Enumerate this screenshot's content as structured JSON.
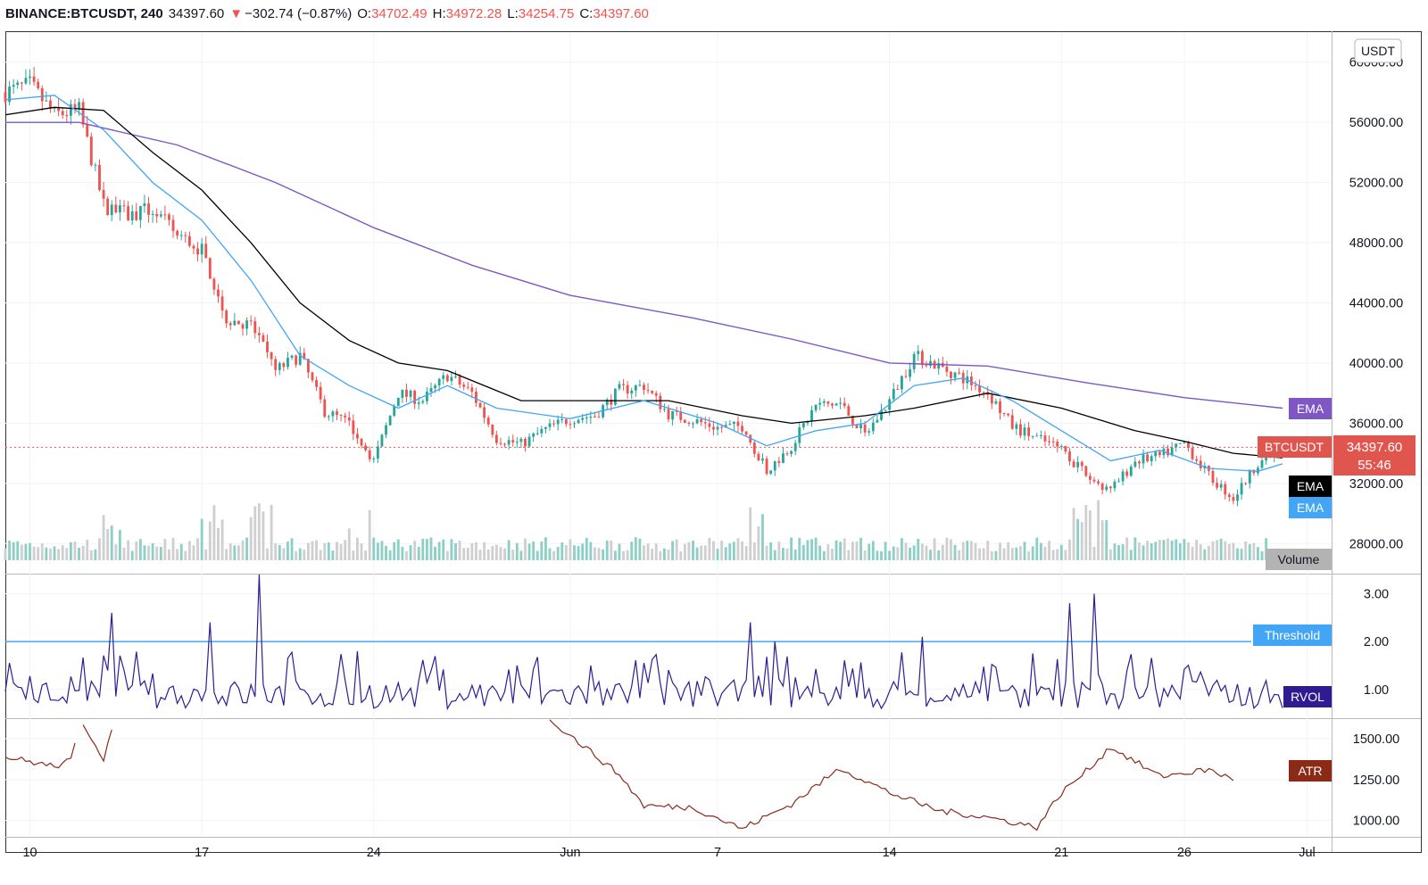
{
  "header": {
    "symbol": "BINANCE:BTCUSDT, 240",
    "price": "34397.60",
    "arrow": "▼",
    "change": "−302.74 (−0.87%)",
    "o_label": "O:",
    "o_value": "34702.49",
    "h_label": "H:",
    "h_value": "34972.28",
    "l_label": "L:",
    "l_value": "34254.75",
    "c_label": "C:",
    "c_value": "34397.60"
  },
  "currency_button": "USDT",
  "labels": {
    "ema_purple": "EMA",
    "ema_black": "EMA",
    "ema_blue": "EMA",
    "symbol_tag": "BTCUSDT",
    "price_tag": "34397.60",
    "countdown": "55:46",
    "volume": "Volume",
    "threshold": "Threshold",
    "rvol": "RVOL",
    "atr": "ATR"
  },
  "colors": {
    "up": "#26a69a",
    "down": "#ef5350",
    "ema_long": "#7e57c2",
    "ema_mid": "#000000",
    "ema_short": "#42a5f5",
    "rvol": "#311b92",
    "threshold": "#2196f3",
    "atr": "#8b2a17",
    "vol_up": "#8ccfc6",
    "vol_down": "#cfcfcf"
  },
  "chart_data": [
    {
      "type": "candlestick",
      "title": "BINANCE:BTCUSDT, 240",
      "y_unit": "USDT",
      "ylim": [
        26000,
        62000
      ],
      "y_ticks": [
        "60000.00",
        "56000.00",
        "52000.00",
        "48000.00",
        "44000.00",
        "40000.00",
        "36000.00",
        "32000.00",
        "28000.00"
      ],
      "y_tick_values": [
        60000,
        56000,
        52000,
        48000,
        44000,
        40000,
        36000,
        32000,
        28000
      ],
      "x_ticks": [
        "10",
        "17",
        "24",
        "Jun",
        "7",
        "14",
        "21",
        "26",
        "Jul"
      ],
      "x_tick_dates": [
        "2021-05-10",
        "2021-05-17",
        "2021-05-24",
        "2021-06-01",
        "2021-06-07",
        "2021-06-14",
        "2021-06-21",
        "2021-06-26",
        "2021-07-01"
      ],
      "x_range": [
        "2021-05-09",
        "2021-07-02"
      ],
      "last_price": 34397.6,
      "close_path": [
        [
          "2021-05-09",
          58000
        ],
        [
          "2021-05-10",
          58500
        ],
        [
          "2021-05-11",
          56500
        ],
        [
          "2021-05-12",
          56800
        ],
        [
          "2021-05-13",
          50500
        ],
        [
          "2021-05-14",
          49800
        ],
        [
          "2021-05-15",
          50200
        ],
        [
          "2021-05-16",
          48500
        ],
        [
          "2021-05-17",
          47500
        ],
        [
          "2021-05-18",
          43000
        ],
        [
          "2021-05-19",
          42500
        ],
        [
          "2021-05-20",
          39500
        ],
        [
          "2021-05-21",
          40500
        ],
        [
          "2021-05-22",
          36800
        ],
        [
          "2021-05-23",
          36000
        ],
        [
          "2021-05-24",
          33500
        ],
        [
          "2021-05-25",
          38000
        ],
        [
          "2021-05-26",
          37500
        ],
        [
          "2021-05-27",
          39200
        ],
        [
          "2021-05-28",
          38000
        ],
        [
          "2021-05-29",
          35000
        ],
        [
          "2021-05-30",
          34600
        ],
        [
          "2021-05-31",
          35600
        ],
        [
          "2021-06-01",
          36300
        ],
        [
          "2021-06-02",
          36500
        ],
        [
          "2021-06-03",
          38200
        ],
        [
          "2021-06-04",
          38500
        ],
        [
          "2021-06-05",
          36600
        ],
        [
          "2021-06-06",
          36200
        ],
        [
          "2021-06-07",
          35700
        ],
        [
          "2021-06-08",
          35800
        ],
        [
          "2021-06-09",
          32800
        ],
        [
          "2021-06-10",
          34500
        ],
        [
          "2021-06-11",
          37200
        ],
        [
          "2021-06-12",
          37300
        ],
        [
          "2021-06-13",
          35200
        ],
        [
          "2021-06-14",
          37500
        ],
        [
          "2021-06-15",
          40500
        ],
        [
          "2021-06-16",
          39800
        ],
        [
          "2021-06-17",
          39000
        ],
        [
          "2021-06-18",
          38000
        ],
        [
          "2021-06-19",
          35800
        ],
        [
          "2021-06-20",
          35000
        ],
        [
          "2021-06-21",
          34300
        ],
        [
          "2021-06-22",
          32500
        ],
        [
          "2021-06-23",
          31500
        ],
        [
          "2021-06-24",
          33500
        ],
        [
          "2021-06-25",
          33800
        ],
        [
          "2021-06-26",
          34700
        ],
        [
          "2021-06-27",
          32500
        ],
        [
          "2021-06-28",
          31000
        ],
        [
          "2021-06-29",
          33400
        ],
        [
          "2021-06-30",
          34397.6
        ]
      ],
      "series": [
        {
          "name": "EMA",
          "role": "long",
          "points": [
            [
              "2021-05-09",
              56000
            ],
            [
              "2021-05-12",
              56000
            ],
            [
              "2021-05-16",
              54500
            ],
            [
              "2021-05-20",
              52000
            ],
            [
              "2021-05-24",
              49000
            ],
            [
              "2021-05-28",
              46500
            ],
            [
              "2021-06-01",
              44500
            ],
            [
              "2021-06-06",
              43000
            ],
            [
              "2021-06-10",
              41600
            ],
            [
              "2021-06-14",
              40000
            ],
            [
              "2021-06-18",
              39800
            ],
            [
              "2021-06-22",
              38700
            ],
            [
              "2021-06-26",
              37700
            ],
            [
              "2021-06-30",
              37000
            ]
          ]
        },
        {
          "name": "EMA",
          "role": "mid",
          "points": [
            [
              "2021-05-09",
              56500
            ],
            [
              "2021-05-11",
              57000
            ],
            [
              "2021-05-13",
              56800
            ],
            [
              "2021-05-15",
              54000
            ],
            [
              "2021-05-17",
              51500
            ],
            [
              "2021-05-19",
              48000
            ],
            [
              "2021-05-21",
              44000
            ],
            [
              "2021-05-23",
              41500
            ],
            [
              "2021-05-25",
              40000
            ],
            [
              "2021-05-27",
              39500
            ],
            [
              "2021-05-30",
              37500
            ],
            [
              "2021-06-02",
              37500
            ],
            [
              "2021-06-05",
              37500
            ],
            [
              "2021-06-08",
              36500
            ],
            [
              "2021-06-10",
              36000
            ],
            [
              "2021-06-13",
              36500
            ],
            [
              "2021-06-15",
              37000
            ],
            [
              "2021-06-18",
              38000
            ],
            [
              "2021-06-21",
              37000
            ],
            [
              "2021-06-24",
              35500
            ],
            [
              "2021-06-26",
              34800
            ],
            [
              "2021-06-28",
              34000
            ],
            [
              "2021-06-30",
              33700
            ]
          ]
        },
        {
          "name": "EMA",
          "role": "short",
          "points": [
            [
              "2021-05-09",
              57500
            ],
            [
              "2021-05-11",
              57800
            ],
            [
              "2021-05-13",
              55500
            ],
            [
              "2021-05-15",
              52000
            ],
            [
              "2021-05-17",
              49500
            ],
            [
              "2021-05-19",
              45500
            ],
            [
              "2021-05-21",
              40500
            ],
            [
              "2021-05-23",
              38500
            ],
            [
              "2021-05-25",
              37000
            ],
            [
              "2021-05-27",
              38500
            ],
            [
              "2021-05-29",
              37000
            ],
            [
              "2021-06-01",
              36300
            ],
            [
              "2021-06-04",
              37500
            ],
            [
              "2021-06-07",
              36000
            ],
            [
              "2021-06-09",
              34500
            ],
            [
              "2021-06-11",
              35500
            ],
            [
              "2021-06-13",
              36000
            ],
            [
              "2021-06-15",
              38500
            ],
            [
              "2021-06-17",
              39000
            ],
            [
              "2021-06-19",
              37500
            ],
            [
              "2021-06-21",
              35500
            ],
            [
              "2021-06-23",
              33500
            ],
            [
              "2021-06-25",
              34200
            ],
            [
              "2021-06-27",
              33000
            ],
            [
              "2021-06-29",
              32800
            ],
            [
              "2021-06-30",
              33300
            ]
          ]
        }
      ],
      "volume_note": "Volume",
      "volume_spike_dates": [
        "2021-05-13",
        "2021-05-17",
        "2021-05-19",
        "2021-05-23",
        "2021-06-08",
        "2021-06-21",
        "2021-06-22"
      ]
    },
    {
      "type": "line",
      "name": "RVOL",
      "ylim": [
        0.4,
        3.4
      ],
      "y_ticks": [
        "3.00",
        "2.00",
        "1.00"
      ],
      "y_tick_values": [
        3,
        2,
        1
      ],
      "threshold": 2.0,
      "spikes": [
        [
          "2021-05-13",
          2.6
        ],
        [
          "2021-05-17",
          2.4
        ],
        [
          "2021-05-19",
          3.4
        ],
        [
          "2021-05-23",
          1.8
        ],
        [
          "2021-06-08",
          2.4
        ],
        [
          "2021-06-09",
          2.0
        ],
        [
          "2021-06-15",
          2.1
        ],
        [
          "2021-06-21",
          2.8
        ],
        [
          "2021-06-22",
          3.0
        ]
      ],
      "baseline": 0.9
    },
    {
      "type": "line",
      "name": "ATR",
      "ylim": [
        900,
        1620
      ],
      "y_ticks": [
        "1500.00",
        "1250.00",
        "1000.00"
      ],
      "y_tick_values": [
        1500,
        1250,
        1000
      ],
      "points": [
        [
          "2021-05-09",
          1390
        ],
        [
          "2021-05-10",
          1360
        ],
        [
          "2021-05-11",
          1330
        ],
        [
          "2021-05-11T18",
          1370
        ],
        [
          "2021-05-12",
          1640
        ],
        [
          "2021-05-13",
          1380
        ],
        [
          "2021-05-13T12",
          1640
        ],
        [
          "2021-05-31",
          1640
        ],
        [
          "2021-06-01",
          1520
        ],
        [
          "2021-06-03",
          1280
        ],
        [
          "2021-06-04",
          1090
        ],
        [
          "2021-06-06",
          1080
        ],
        [
          "2021-06-08",
          950
        ],
        [
          "2021-06-10",
          1100
        ],
        [
          "2021-06-12",
          1320
        ],
        [
          "2021-06-14",
          1170
        ],
        [
          "2021-06-16",
          1060
        ],
        [
          "2021-06-18",
          1020
        ],
        [
          "2021-06-20",
          960
        ],
        [
          "2021-06-21",
          1170
        ],
        [
          "2021-06-22",
          1300
        ],
        [
          "2021-06-23",
          1450
        ],
        [
          "2021-06-25",
          1270
        ],
        [
          "2021-06-27",
          1310
        ],
        [
          "2021-06-28",
          1250
        ]
      ]
    }
  ]
}
